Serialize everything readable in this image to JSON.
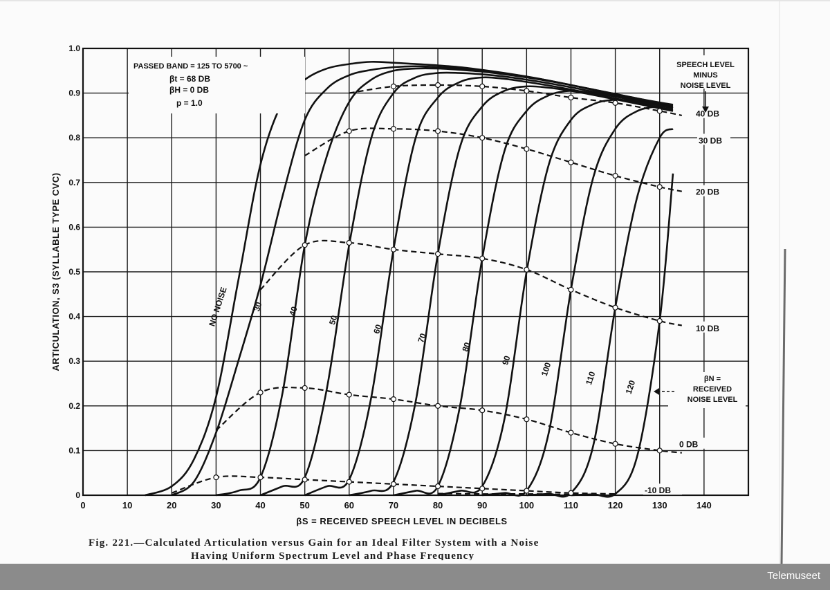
{
  "watermark": "Telemuseet",
  "caption": {
    "line1": "Fig. 221.—Calculated Articulation versus Gain for an Ideal Filter System with a Noise",
    "line2": "Having Uniform Spectrum Level and Phase Frequency"
  },
  "chart_data": {
    "type": "line",
    "xlabel": "βS = RECEIVED SPEECH LEVEL IN DECIBELS",
    "ylabel": "ARTICULATION, S3 (SYLLABLE TYPE CVC)",
    "xlim": [
      0,
      150
    ],
    "ylim": [
      0,
      1.0
    ],
    "x_ticks": [
      "0",
      "10",
      "20",
      "30",
      "40",
      "50",
      "60",
      "70",
      "80",
      "90",
      "100",
      "110",
      "120",
      "130",
      "140"
    ],
    "y_ticks": [
      "0",
      "0.1",
      "0.2",
      "0.3",
      "0.4",
      "0.5",
      "0.6",
      "0.7",
      "0.8",
      "0.9",
      "1.0"
    ],
    "grid": true,
    "annotation": {
      "lines": [
        "PASSED BAND = 125 TO 5700 ~",
        "βt = 68 DB",
        "βH = 0 DB",
        "p = 1.0"
      ]
    },
    "legend_title": [
      "SPEECH LEVEL",
      "MINUS",
      "NOISE LEVEL"
    ],
    "noise_label": [
      "βN =",
      "RECEIVED",
      "NOISE LEVEL"
    ],
    "series": [
      {
        "name": "NO NOISE",
        "label_pos": [
          31,
          0.42
        ],
        "x": [
          14,
          20,
          25,
          30,
          35,
          40,
          45,
          50,
          55,
          60,
          65,
          70,
          75,
          80,
          85,
          90,
          95,
          100,
          105,
          110,
          115,
          120,
          125,
          130,
          133
        ],
        "y": [
          0,
          0.02,
          0.08,
          0.22,
          0.48,
          0.74,
          0.88,
          0.93,
          0.955,
          0.965,
          0.97,
          0.968,
          0.965,
          0.962,
          0.958,
          0.952,
          0.945,
          0.937,
          0.928,
          0.918,
          0.907,
          0.895,
          0.885,
          0.876,
          0.87
        ]
      },
      {
        "name": "30",
        "label_pos": [
          40,
          0.42
        ],
        "x": [
          20,
          25,
          30,
          35,
          40,
          45,
          50,
          55,
          60,
          65,
          70,
          75,
          80,
          85,
          90,
          95,
          100,
          105,
          110,
          115,
          120,
          125,
          130,
          133
        ],
        "y": [
          0,
          0.03,
          0.14,
          0.3,
          0.47,
          0.67,
          0.84,
          0.91,
          0.94,
          0.952,
          0.958,
          0.96,
          0.958,
          0.955,
          0.95,
          0.944,
          0.937,
          0.928,
          0.918,
          0.908,
          0.898,
          0.888,
          0.879,
          0.874
        ]
      },
      {
        "name": "40",
        "label_pos": [
          48,
          0.41
        ],
        "x": [
          30,
          35,
          40,
          45,
          50,
          55,
          60,
          65,
          70,
          75,
          80,
          85,
          90,
          95,
          100,
          105,
          110,
          115,
          120,
          125,
          130,
          133
        ],
        "y": [
          0,
          0.01,
          0.04,
          0.23,
          0.56,
          0.76,
          0.88,
          0.93,
          0.95,
          0.955,
          0.955,
          0.952,
          0.948,
          0.942,
          0.935,
          0.927,
          0.918,
          0.908,
          0.898,
          0.888,
          0.878,
          0.872
        ]
      },
      {
        "name": "50",
        "label_pos": [
          57,
          0.39
        ],
        "x": [
          40,
          45,
          50,
          55,
          60,
          65,
          70,
          75,
          80,
          85,
          90,
          95,
          100,
          105,
          110,
          115,
          120,
          125,
          130,
          133
        ],
        "y": [
          0,
          0.02,
          0.04,
          0.24,
          0.56,
          0.8,
          0.9,
          0.935,
          0.945,
          0.945,
          0.942,
          0.937,
          0.93,
          0.922,
          0.913,
          0.903,
          0.893,
          0.883,
          0.873,
          0.867
        ]
      },
      {
        "name": "60",
        "label_pos": [
          67,
          0.37
        ],
        "x": [
          50,
          55,
          60,
          65,
          70,
          75,
          80,
          85,
          90,
          95,
          100,
          105,
          110,
          115,
          120,
          125,
          130,
          133
        ],
        "y": [
          0,
          0.02,
          0.035,
          0.22,
          0.55,
          0.8,
          0.89,
          0.925,
          0.935,
          0.932,
          0.925,
          0.917,
          0.908,
          0.898,
          0.888,
          0.878,
          0.868,
          0.862
        ]
      },
      {
        "name": "70",
        "label_pos": [
          77,
          0.35
        ],
        "x": [
          60,
          65,
          70,
          75,
          80,
          85,
          90,
          95,
          100,
          105,
          110,
          115,
          120,
          125,
          130,
          133
        ],
        "y": [
          0,
          0.01,
          0.03,
          0.21,
          0.54,
          0.78,
          0.87,
          0.905,
          0.915,
          0.912,
          0.905,
          0.896,
          0.886,
          0.876,
          0.866,
          0.86
        ]
      },
      {
        "name": "80",
        "label_pos": [
          87,
          0.33
        ],
        "x": [
          70,
          75,
          80,
          85,
          90,
          95,
          100,
          105,
          110,
          115,
          120,
          125,
          130,
          133
        ],
        "y": [
          0,
          0.01,
          0.02,
          0.2,
          0.53,
          0.77,
          0.86,
          0.895,
          0.905,
          0.9,
          0.892,
          0.882,
          0.872,
          0.866
        ]
      },
      {
        "name": "90",
        "label_pos": [
          96,
          0.3
        ],
        "x": [
          80,
          85,
          90,
          95,
          100,
          105,
          110,
          115,
          120,
          125,
          130,
          133
        ],
        "y": [
          0,
          0.01,
          0.02,
          0.17,
          0.5,
          0.74,
          0.84,
          0.875,
          0.885,
          0.88,
          0.872,
          0.866
        ]
      },
      {
        "name": "100",
        "label_pos": [
          105,
          0.28
        ],
        "x": [
          90,
          95,
          100,
          105,
          110,
          115,
          120,
          125,
          130,
          133
        ],
        "y": [
          0,
          0.005,
          0.01,
          0.14,
          0.46,
          0.71,
          0.82,
          0.86,
          0.87,
          0.868
        ]
      },
      {
        "name": "110",
        "label_pos": [
          115,
          0.26
        ],
        "x": [
          100,
          105,
          110,
          115,
          120,
          125,
          130,
          133
        ],
        "y": [
          0,
          0.003,
          0.005,
          0.11,
          0.42,
          0.67,
          0.8,
          0.82
        ]
      },
      {
        "name": "120",
        "label_pos": [
          124,
          0.24
        ],
        "x": [
          110,
          115,
          120,
          125,
          130,
          133
        ],
        "y": [
          0,
          0.002,
          0.003,
          0.09,
          0.39,
          0.72
        ]
      }
    ],
    "contours": [
      {
        "name": "40 DB",
        "x": [
          60,
          70,
          80,
          90,
          100,
          110,
          120,
          130,
          135
        ],
        "y": [
          0.9,
          0.915,
          0.918,
          0.915,
          0.905,
          0.89,
          0.878,
          0.86,
          0.85
        ]
      },
      {
        "name": "30 DB",
        "x": [
          50,
          60,
          70,
          80,
          90,
          100,
          110,
          120,
          130,
          135
        ],
        "y": [
          0.76,
          0.815,
          0.82,
          0.815,
          0.8,
          0.775,
          0.745,
          0.715,
          0.69,
          0.68
        ]
      },
      {
        "name": "20 DB",
        "x": [
          40,
          50,
          60,
          70,
          80,
          90,
          100,
          110,
          120,
          130,
          135
        ],
        "y": [
          0.46,
          0.56,
          0.565,
          0.55,
          0.54,
          0.53,
          0.505,
          0.46,
          0.42,
          0.39,
          0.38
        ]
      },
      {
        "name": "10 DB",
        "x": [
          30,
          40,
          50,
          60,
          70,
          80,
          90,
          100,
          110,
          120,
          130,
          135
        ],
        "y": [
          0.145,
          0.23,
          0.24,
          0.225,
          0.215,
          0.2,
          0.19,
          0.17,
          0.14,
          0.115,
          0.1,
          0.095
        ]
      },
      {
        "name": "0 DB",
        "x": [
          20,
          30,
          40,
          50,
          60,
          70,
          80,
          90,
          100,
          110,
          120
        ],
        "y": [
          0.005,
          0.04,
          0.04,
          0.035,
          0.03,
          0.025,
          0.02,
          0.015,
          0.01,
          0.005,
          0.003
        ]
      }
    ],
    "contour_labels": [
      "40 DB",
      "30 DB",
      "20 DB",
      "10 DB",
      "0 DB",
      "-10 DB"
    ]
  }
}
